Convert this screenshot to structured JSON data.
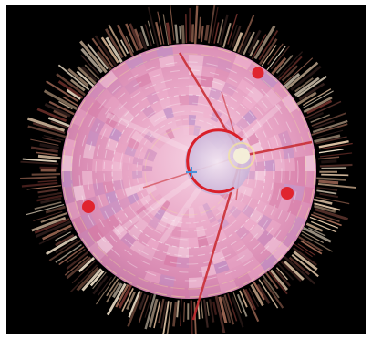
{
  "image": {
    "subject": "radial-visualization",
    "background_color": "#000000",
    "frame_color": "#ffffff",
    "colors": {
      "disc_pink": "#e8a4c4",
      "disc_light": "#f3c8dc",
      "disc_purple": "#b98fc9",
      "core": "#e2d2ea",
      "accent_red": "#d91f2a",
      "marker_red": "#e0242f",
      "spoke_red": "#c8282e",
      "highlight_yellow": "#f4e69a",
      "cross_blue": "#4a90d9",
      "outer_ring_tones": [
        "#8a5a4a",
        "#c9a88a",
        "#6b2f2a",
        "#e2c6a8",
        "#3b2522",
        "#a06a55",
        "#f0e0c8",
        "#55302a"
      ]
    },
    "markers": [
      {
        "id": "top-right",
        "color": "#e0242f"
      },
      {
        "id": "right",
        "color": "#e0242f"
      },
      {
        "id": "left",
        "color": "#e0242f"
      }
    ],
    "core_cross": {
      "color": "#4a90d9"
    }
  }
}
